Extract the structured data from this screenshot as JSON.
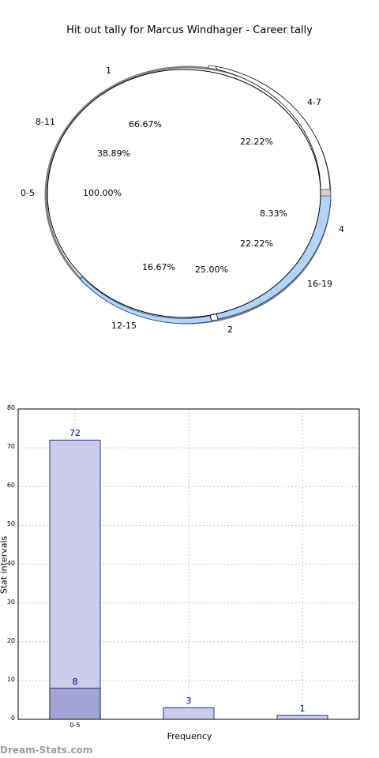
{
  "chart_data": [
    {
      "type": "pie",
      "title": "Hit out tally for Marcus Windhager - Career tally",
      "outer_labels": [
        "1",
        "4-7",
        "8-11",
        "0-5",
        "4",
        "16-19",
        "12-15",
        "2"
      ],
      "inner_labels": [
        "66.67%",
        "22.22%",
        "38.89%",
        "100.00%",
        "8.33%",
        "22.22%",
        "16.67%",
        "25.00%"
      ],
      "colors": {
        "light_blue": "#b3d4f7",
        "white": "#ffffff",
        "gray": "#808080",
        "dark_gray": "#555555"
      }
    },
    {
      "type": "bar",
      "xlabel": "Frequency",
      "ylabel": "Stat intervals",
      "ylim": [
        0,
        80
      ],
      "yticks": [
        "0",
        "10",
        "20",
        "30",
        "40",
        "50",
        "60",
        "70",
        "80"
      ],
      "categories": [
        "0-5",
        "",
        ""
      ],
      "series": [
        {
          "values": [
            72,
            3,
            1
          ],
          "color": "#ccccea"
        },
        {
          "values": [
            8,
            0,
            0
          ],
          "color": "#a3a3d4"
        }
      ],
      "data_labels": [
        "72",
        "8",
        "3",
        "1"
      ],
      "grid": true
    }
  ],
  "footer": {
    "watermark": "Dream-Stats.com"
  }
}
